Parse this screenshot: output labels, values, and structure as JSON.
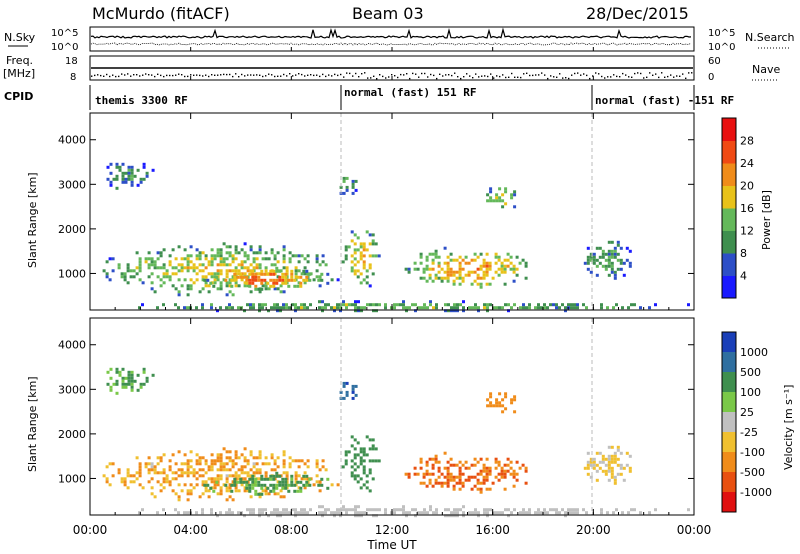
{
  "header": {
    "station": "McMurdo (fitACF)",
    "beam": "Beam 03",
    "date": "28/Dec/2015"
  },
  "noise_panel": {
    "left_label": "N.Sky",
    "right_label": "N.Search",
    "left_ticks": [
      "10^5",
      "10^0"
    ],
    "right_ticks": [
      "10^5",
      "10^0"
    ]
  },
  "freq_panel": {
    "left_label_top": "Freq.",
    "left_label_bottom": "[MHz]",
    "right_label": "Nave",
    "left_ticks": [
      "18",
      "8"
    ],
    "right_ticks": [
      "60",
      "0"
    ]
  },
  "cpid_panel": {
    "label": "CPID",
    "segments": [
      {
        "label": "themis 3300 RF",
        "start_hour": 0,
        "end_hour": 10
      },
      {
        "label": "normal (fast) 151 RF",
        "start_hour": 10,
        "end_hour": 20
      },
      {
        "label": "normal (fast) -151 RF",
        "start_hour": 20,
        "end_hour": 24
      }
    ]
  },
  "power_panel": {
    "ylabel": "Slant Range [km]",
    "yticks": [
      "4000",
      "3000",
      "2000",
      "1000"
    ],
    "colorbar_label": "Power [dB]",
    "colorbar_ticks": [
      "28",
      "24",
      "20",
      "16",
      "12",
      "8",
      "4"
    ],
    "colors": [
      "#1a1aff",
      "#2d4fc7",
      "#3f8f4f",
      "#64b85a",
      "#e8c21a",
      "#f08c1a",
      "#f04a14",
      "#e81010"
    ]
  },
  "velocity_panel": {
    "ylabel": "Slant Range [km]",
    "yticks": [
      "4000",
      "3000",
      "2000",
      "1000"
    ],
    "colorbar_label": "Velocity [m s⁻¹]",
    "colorbar_ticks": [
      "1000",
      "500",
      "100",
      "25",
      "-25",
      "-100",
      "-500",
      "-1000"
    ],
    "colors": [
      "#1a3fb8",
      "#2f6fa0",
      "#3f8f4f",
      "#7ac848",
      "#c0c0c0",
      "#f0c030",
      "#f08c1a",
      "#e85010",
      "#e01010"
    ]
  },
  "time_axis": {
    "xlabel": "Time UT",
    "ticks": [
      "00:00",
      "04:00",
      "08:00",
      "12:00",
      "16:00",
      "20:00",
      "00:00"
    ]
  },
  "chart_data": {
    "type": "heatmap",
    "title": "McMurdo (fitACF)",
    "subtitle": "Beam 03",
    "xlabel": "Time UT",
    "ylabel": "Slant Range [km]",
    "xlim": [
      0,
      24
    ],
    "ylim": [
      180,
      4600
    ],
    "grid": false,
    "mode_change_hours": [
      10,
      20
    ],
    "power_scale": {
      "label": "Power [dB]",
      "range": [
        0,
        32
      ],
      "ticks": [
        4,
        8,
        12,
        16,
        20,
        24,
        28
      ]
    },
    "velocity_scale": {
      "label": "Velocity [m s⁻¹]",
      "ticks": [
        1000,
        500,
        100,
        25,
        -25,
        -100,
        -500,
        -1000
      ]
    },
    "echo_regions": [
      {
        "t0": 0.3,
        "t1": 2.5,
        "r0": 2900,
        "r1": 3550,
        "power": 10,
        "velocity": 60
      },
      {
        "t0": 0.5,
        "t1": 9.8,
        "r0": 500,
        "r1": 1700,
        "power": 18,
        "velocity": -60
      },
      {
        "t0": 4.5,
        "t1": 9.5,
        "r0": 650,
        "r1": 1150,
        "power": 24,
        "velocity": 80
      },
      {
        "t0": 9.8,
        "t1": 10.6,
        "r0": 2700,
        "r1": 3300,
        "power": 12,
        "velocity": 600
      },
      {
        "t0": 10.0,
        "t1": 11.5,
        "r0": 700,
        "r1": 2100,
        "power": 20,
        "velocity": 150
      },
      {
        "t0": 12.5,
        "t1": 17.5,
        "r0": 700,
        "r1": 1600,
        "power": 22,
        "velocity": -300
      },
      {
        "t0": 15.5,
        "t1": 17.0,
        "r0": 2400,
        "r1": 3000,
        "power": 16,
        "velocity": -200
      },
      {
        "t0": 19.5,
        "t1": 21.5,
        "r0": 900,
        "r1": 1800,
        "power": 12,
        "velocity": -30
      },
      {
        "t0": 0,
        "t1": 24,
        "r0": 180,
        "r1": 400,
        "power": 14,
        "velocity": 0
      }
    ]
  }
}
